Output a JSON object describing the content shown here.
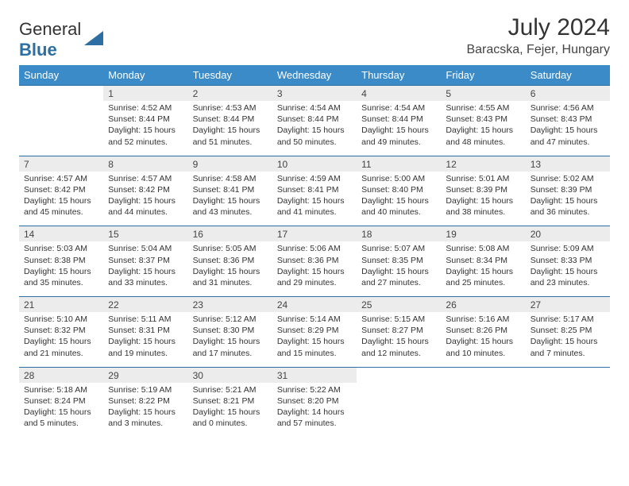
{
  "logo": {
    "part1": "General",
    "part2": "Blue"
  },
  "title": "July 2024",
  "location": "Baracska, Fejer, Hungary",
  "colors": {
    "header_bg": "#3b8bc9",
    "header_text": "#ffffff",
    "daynum_bg": "#ececec",
    "daynum_border": "#2d6fa3",
    "logo_blue": "#2d6fa3",
    "title_color": "#333333"
  },
  "day_headers": [
    "Sunday",
    "Monday",
    "Tuesday",
    "Wednesday",
    "Thursday",
    "Friday",
    "Saturday"
  ],
  "weeks": [
    {
      "nums": [
        "",
        "1",
        "2",
        "3",
        "4",
        "5",
        "6"
      ],
      "cells": [
        "",
        "Sunrise: 4:52 AM\nSunset: 8:44 PM\nDaylight: 15 hours and 52 minutes.",
        "Sunrise: 4:53 AM\nSunset: 8:44 PM\nDaylight: 15 hours and 51 minutes.",
        "Sunrise: 4:54 AM\nSunset: 8:44 PM\nDaylight: 15 hours and 50 minutes.",
        "Sunrise: 4:54 AM\nSunset: 8:44 PM\nDaylight: 15 hours and 49 minutes.",
        "Sunrise: 4:55 AM\nSunset: 8:43 PM\nDaylight: 15 hours and 48 minutes.",
        "Sunrise: 4:56 AM\nSunset: 8:43 PM\nDaylight: 15 hours and 47 minutes."
      ]
    },
    {
      "nums": [
        "7",
        "8",
        "9",
        "10",
        "11",
        "12",
        "13"
      ],
      "cells": [
        "Sunrise: 4:57 AM\nSunset: 8:42 PM\nDaylight: 15 hours and 45 minutes.",
        "Sunrise: 4:57 AM\nSunset: 8:42 PM\nDaylight: 15 hours and 44 minutes.",
        "Sunrise: 4:58 AM\nSunset: 8:41 PM\nDaylight: 15 hours and 43 minutes.",
        "Sunrise: 4:59 AM\nSunset: 8:41 PM\nDaylight: 15 hours and 41 minutes.",
        "Sunrise: 5:00 AM\nSunset: 8:40 PM\nDaylight: 15 hours and 40 minutes.",
        "Sunrise: 5:01 AM\nSunset: 8:39 PM\nDaylight: 15 hours and 38 minutes.",
        "Sunrise: 5:02 AM\nSunset: 8:39 PM\nDaylight: 15 hours and 36 minutes."
      ]
    },
    {
      "nums": [
        "14",
        "15",
        "16",
        "17",
        "18",
        "19",
        "20"
      ],
      "cells": [
        "Sunrise: 5:03 AM\nSunset: 8:38 PM\nDaylight: 15 hours and 35 minutes.",
        "Sunrise: 5:04 AM\nSunset: 8:37 PM\nDaylight: 15 hours and 33 minutes.",
        "Sunrise: 5:05 AM\nSunset: 8:36 PM\nDaylight: 15 hours and 31 minutes.",
        "Sunrise: 5:06 AM\nSunset: 8:36 PM\nDaylight: 15 hours and 29 minutes.",
        "Sunrise: 5:07 AM\nSunset: 8:35 PM\nDaylight: 15 hours and 27 minutes.",
        "Sunrise: 5:08 AM\nSunset: 8:34 PM\nDaylight: 15 hours and 25 minutes.",
        "Sunrise: 5:09 AM\nSunset: 8:33 PM\nDaylight: 15 hours and 23 minutes."
      ]
    },
    {
      "nums": [
        "21",
        "22",
        "23",
        "24",
        "25",
        "26",
        "27"
      ],
      "cells": [
        "Sunrise: 5:10 AM\nSunset: 8:32 PM\nDaylight: 15 hours and 21 minutes.",
        "Sunrise: 5:11 AM\nSunset: 8:31 PM\nDaylight: 15 hours and 19 minutes.",
        "Sunrise: 5:12 AM\nSunset: 8:30 PM\nDaylight: 15 hours and 17 minutes.",
        "Sunrise: 5:14 AM\nSunset: 8:29 PM\nDaylight: 15 hours and 15 minutes.",
        "Sunrise: 5:15 AM\nSunset: 8:27 PM\nDaylight: 15 hours and 12 minutes.",
        "Sunrise: 5:16 AM\nSunset: 8:26 PM\nDaylight: 15 hours and 10 minutes.",
        "Sunrise: 5:17 AM\nSunset: 8:25 PM\nDaylight: 15 hours and 7 minutes."
      ]
    },
    {
      "nums": [
        "28",
        "29",
        "30",
        "31",
        "",
        "",
        ""
      ],
      "cells": [
        "Sunrise: 5:18 AM\nSunset: 8:24 PM\nDaylight: 15 hours and 5 minutes.",
        "Sunrise: 5:19 AM\nSunset: 8:22 PM\nDaylight: 15 hours and 3 minutes.",
        "Sunrise: 5:21 AM\nSunset: 8:21 PM\nDaylight: 15 hours and 0 minutes.",
        "Sunrise: 5:22 AM\nSunset: 8:20 PM\nDaylight: 14 hours and 57 minutes.",
        "",
        "",
        ""
      ]
    }
  ]
}
